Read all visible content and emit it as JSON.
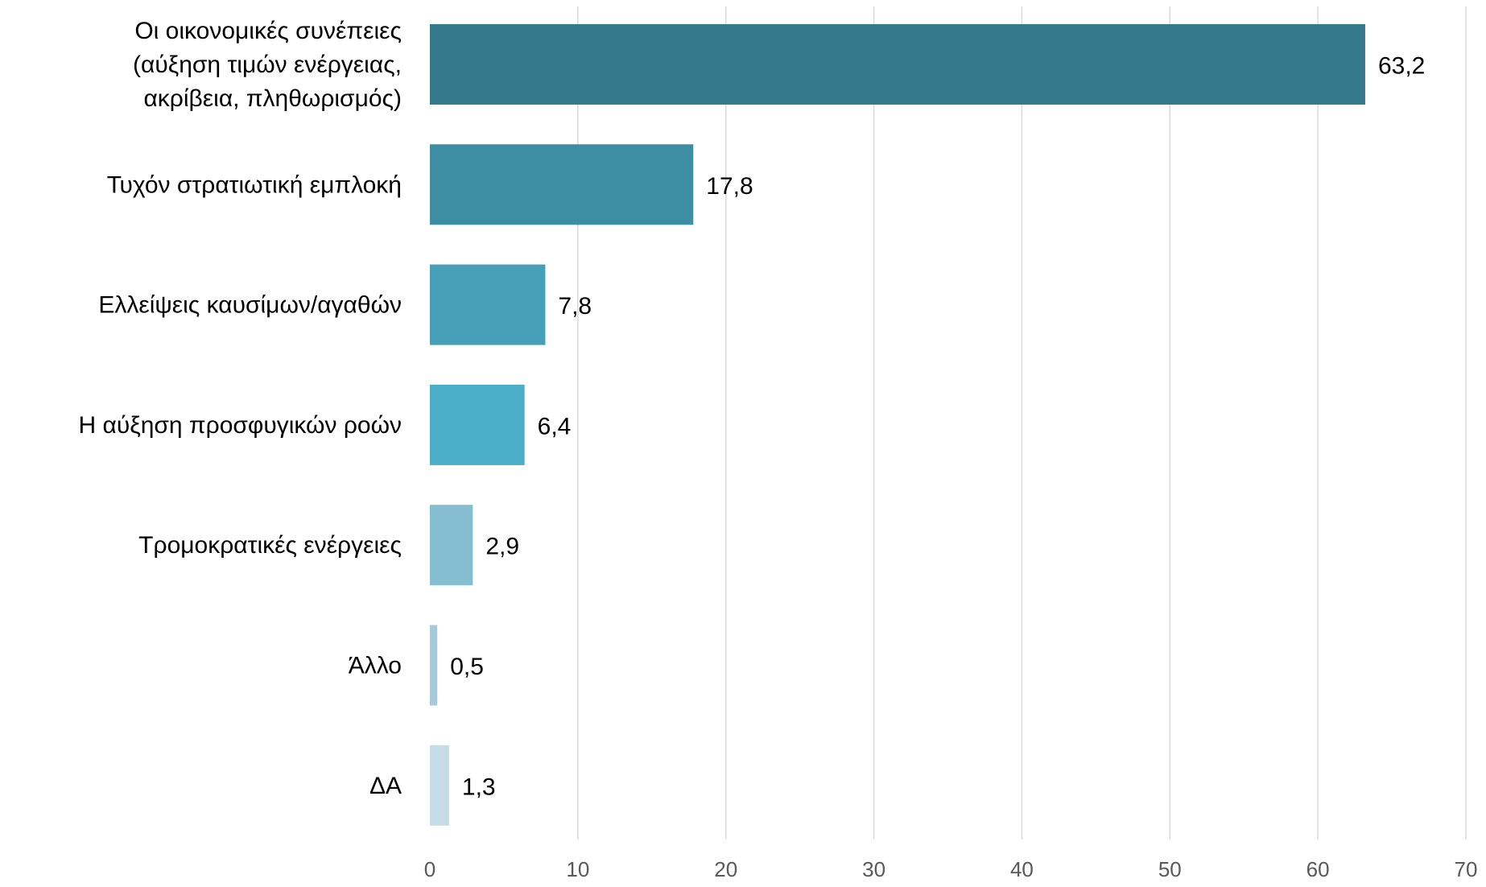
{
  "chart_data": {
    "type": "bar",
    "orientation": "horizontal",
    "title": "",
    "xlabel": "",
    "ylabel": "",
    "categories": [
      [
        "Οι οικονομικές συνέπειες",
        "(αύξηση τιμών ενέργειας,",
        "ακρίβεια, πληθωρισμός)"
      ],
      [
        "Τυχόν στρατιωτική εμπλοκή"
      ],
      [
        "Ελλείψεις καυσίμων/αγαθών"
      ],
      [
        "Η αύξηση προσφυγικών ροών"
      ],
      [
        "Τρομοκρατικές ενέργειες"
      ],
      [
        "Άλλο"
      ],
      [
        "ΔΑ"
      ]
    ],
    "values": [
      63.2,
      17.8,
      7.8,
      6.4,
      2.9,
      0.5,
      1.3
    ],
    "value_labels": [
      "63,2",
      "17,8",
      "7,8",
      "6,4",
      "2,9",
      "0,5",
      "1,3"
    ],
    "bar_colors": [
      "#357a8c",
      "#3d8da3",
      "#459fb7",
      "#4aaec8",
      "#86bed1",
      "#a6cad9",
      "#c5dde6"
    ],
    "xlim": [
      0,
      70
    ],
    "ticks": [
      0,
      10,
      20,
      30,
      40,
      50,
      60,
      70
    ],
    "grid": true,
    "legend": "none"
  }
}
